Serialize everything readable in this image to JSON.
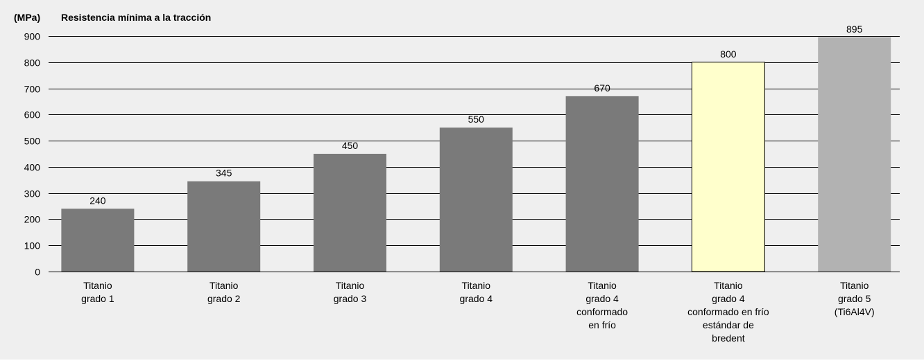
{
  "chart_data": {
    "type": "bar",
    "title": "Resistencia mínima a la tracción",
    "ylabel": "(MPa)",
    "xlabel": "",
    "ylim": [
      0,
      900
    ],
    "yticks": [
      0,
      100,
      200,
      300,
      400,
      500,
      600,
      700,
      800,
      900
    ],
    "grid": true,
    "categories": [
      [
        "Titanio",
        "grado 1"
      ],
      [
        "Titanio",
        "grado 2"
      ],
      [
        "Titanio",
        "grado 3"
      ],
      [
        "Titanio",
        "grado 4"
      ],
      [
        "Titanio",
        "grado 4",
        "conformado",
        "en frío"
      ],
      [
        "Titanio",
        "grado 4",
        "conformado en frío",
        "estándar de",
        "bredent"
      ],
      [
        "Titanio",
        "grado 5",
        "(Ti6Al4V)"
      ]
    ],
    "values": [
      240,
      345,
      450,
      550,
      670,
      800,
      895
    ],
    "data_labels": [
      "240",
      "345",
      "450",
      "550",
      "670",
      "800",
      "895"
    ],
    "bar_colors": [
      "#7a7a7a",
      "#7a7a7a",
      "#7a7a7a",
      "#7a7a7a",
      "#7a7a7a",
      "#ffffcc",
      "#b2b2b2"
    ],
    "highlight_stroke": "#000000",
    "background_color": "#efefef"
  }
}
